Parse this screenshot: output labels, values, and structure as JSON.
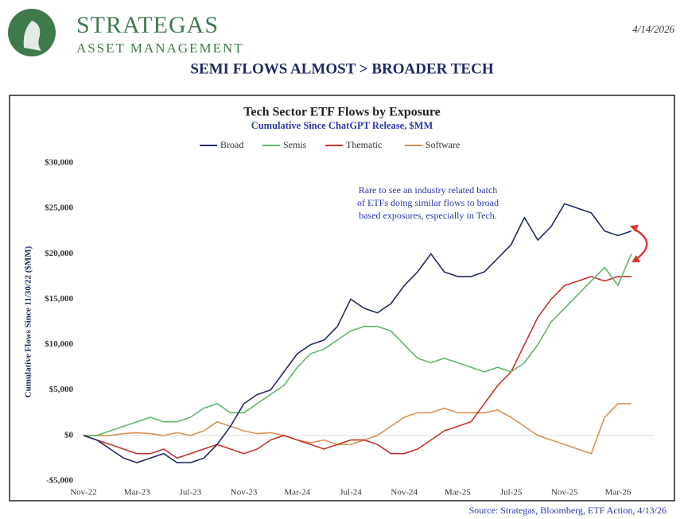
{
  "header": {
    "brand": "STRATEGAS",
    "tagline": "ASSET MANAGEMENT",
    "date": "4/14/2026",
    "headline": "SEMI FLOWS ALMOST > BROADER TECH"
  },
  "chart_data": {
    "type": "line",
    "title": "Tech Sector ETF Flows by Exposure",
    "subtitle": "Cumulative Since ChatGPT Release, $MM",
    "y_label": "Cumulative Flows Since 11/30/22 ($MM)",
    "annotation": [
      "Rare to see an industry related batch",
      "of ETFs doing similar flows to broad",
      "based exposures, especially in Tech."
    ],
    "categories": [
      "Nov-22",
      null,
      null,
      null,
      "Mar-23",
      null,
      null,
      null,
      "Jul-23",
      null,
      null,
      null,
      "Nov-23",
      null,
      null,
      null,
      "Mar-24",
      null,
      null,
      null,
      "Jul-24",
      null,
      null,
      null,
      "Nov-24",
      null,
      null,
      null,
      "Mar-25",
      null,
      null,
      null,
      "Jul-25",
      null,
      null,
      null,
      "Nov-25",
      null,
      null,
      null,
      "Mar-26",
      null
    ],
    "series": [
      {
        "name": "Broad",
        "color": "#1f2a63",
        "values": [
          0,
          -500,
          -1500,
          -2500,
          -3000,
          -2500,
          -2000,
          -3000,
          -3000,
          -2500,
          -1000,
          1000,
          3500,
          4500,
          5000,
          7000,
          9000,
          10000,
          10500,
          12000,
          15000,
          14000,
          13500,
          14500,
          16500,
          18000,
          20000,
          18000,
          17500,
          17500,
          18000,
          19500,
          21000,
          24000,
          21500,
          23000,
          25500,
          25000,
          24500,
          22500,
          22000,
          22500
        ]
      },
      {
        "name": "Semis",
        "color": "#5fb56a",
        "values": [
          0,
          0,
          500,
          1000,
          1500,
          2000,
          1500,
          1500,
          2000,
          3000,
          3500,
          2500,
          2500,
          3500,
          4500,
          5500,
          7500,
          9000,
          9500,
          10500,
          11500,
          12000,
          12000,
          11500,
          10000,
          8500,
          8000,
          8500,
          8000,
          7500,
          7000,
          7500,
          7000,
          8000,
          10000,
          12500,
          14000,
          15500,
          17000,
          18500,
          16500,
          20000
        ]
      },
      {
        "name": "Thematic",
        "color": "#c8322a",
        "values": [
          0,
          -500,
          -1000,
          -1500,
          -2000,
          -2000,
          -1500,
          -2500,
          -2000,
          -1500,
          -1000,
          -1500,
          -2000,
          -1500,
          -500,
          0,
          -500,
          -1000,
          -1500,
          -1000,
          -500,
          -500,
          -1000,
          -2000,
          -2000,
          -1500,
          -500,
          500,
          1000,
          1500,
          3500,
          5500,
          7000,
          10000,
          13000,
          15000,
          16500,
          17000,
          17500,
          17000,
          17500,
          17500
        ]
      },
      {
        "name": "Software",
        "color": "#d9914f",
        "values": [
          0,
          0,
          0,
          200,
          300,
          200,
          0,
          300,
          0,
          500,
          1500,
          1000,
          500,
          200,
          300,
          0,
          -500,
          -800,
          -500,
          -1000,
          -1000,
          -500,
          0,
          1000,
          2000,
          2500,
          2500,
          3000,
          2500,
          2500,
          2500,
          2800,
          2000,
          1000,
          0,
          -500,
          -1000,
          -1500,
          -2000,
          2000,
          3500,
          3500
        ]
      }
    ],
    "ylim": [
      -5000,
      30000
    ],
    "yticks": [
      {
        "value": -5000,
        "label": "-$5,000"
      },
      {
        "value": 0,
        "label": "$0"
      },
      {
        "value": 5000,
        "label": "$5,000"
      },
      {
        "value": 10000,
        "label": "$10,000"
      },
      {
        "value": 15000,
        "label": "$15,000"
      },
      {
        "value": 20000,
        "label": "$20,000"
      },
      {
        "value": 25000,
        "label": "$25,000"
      },
      {
        "value": 30000,
        "label": "$30,000"
      }
    ],
    "zero_line": true,
    "legend": "top"
  },
  "source": "Source: Strategas, Bloomberg, ETF Action, 4/13/26"
}
